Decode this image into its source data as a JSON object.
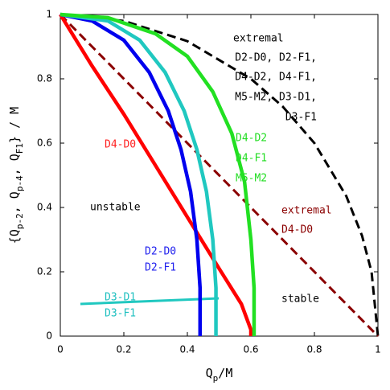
{
  "chart_data": {
    "type": "line",
    "xlabel": [
      "Q",
      "p",
      "/M"
    ],
    "ylabel": [
      "{Q",
      "p-2",
      ", Q",
      "p-4",
      ", Q",
      "F1",
      "} / M"
    ],
    "xlim": [
      0,
      1
    ],
    "ylim": [
      0,
      1
    ],
    "xticks": [
      0,
      0.2,
      0.4,
      0.6,
      0.8,
      1
    ],
    "yticks": [
      0,
      0.2,
      0.4,
      0.6,
      0.8,
      1
    ],
    "series": [
      {
        "color": "#000000",
        "dashed": true,
        "x": [
          0,
          0.2,
          0.4,
          0.6,
          0.7,
          0.8,
          0.9,
          0.95,
          0.98,
          1
        ],
        "values": [
          1,
          0.98,
          0.917,
          0.8,
          0.714,
          0.6,
          0.436,
          0.312,
          0.199,
          0
        ]
      },
      {
        "color": "#8b0000",
        "dashed": true,
        "x": [
          0,
          1
        ],
        "values": [
          1,
          0
        ]
      },
      {
        "color": "#ff0000",
        "dashed": false,
        "x": [
          0,
          0.1,
          0.2,
          0.3,
          0.4,
          0.5,
          0.57,
          0.6,
          0.6
        ],
        "values": [
          1,
          0.84,
          0.69,
          0.53,
          0.37,
          0.21,
          0.1,
          0.02,
          0
        ]
      },
      {
        "color": "#0000ee",
        "dashed": false,
        "x": [
          0,
          0.1,
          0.2,
          0.28,
          0.34,
          0.38,
          0.41,
          0.43,
          0.44,
          0.44
        ],
        "values": [
          1,
          0.98,
          0.92,
          0.82,
          0.7,
          0.58,
          0.45,
          0.3,
          0.15,
          0
        ]
      },
      {
        "color": "#20c8c0",
        "dashed": false,
        "x": [
          0,
          0.15,
          0.25,
          0.33,
          0.39,
          0.43,
          0.46,
          0.48,
          0.49,
          0.49
        ],
        "values": [
          1,
          0.98,
          0.92,
          0.82,
          0.7,
          0.58,
          0.45,
          0.3,
          0.15,
          0
        ]
      },
      {
        "color": "#22e022",
        "dashed": false,
        "x": [
          0,
          0.15,
          0.3,
          0.4,
          0.48,
          0.54,
          0.58,
          0.6,
          0.61,
          0.61
        ],
        "values": [
          1,
          0.99,
          0.94,
          0.87,
          0.76,
          0.63,
          0.48,
          0.3,
          0.15,
          0
        ]
      }
    ],
    "annotations": [
      {
        "color": "#000000",
        "lines": [
          "extremal",
          "D2-D0, D2-F1,",
          "D4-D2, D4-F1,",
          "M5-M2, D3-D1,",
          "D3-F1"
        ]
      },
      {
        "color": "#ff2020",
        "lines": [
          "D4-D0"
        ]
      },
      {
        "color": "#22dd22",
        "lines": [
          "D4-D2",
          "D4-F1",
          "M5-M2"
        ]
      },
      {
        "color": "#8b0000",
        "lines": [
          "extremal",
          "D4-D0"
        ]
      },
      {
        "color": "#000000",
        "lines": [
          "unstable"
        ]
      },
      {
        "color": "#2020ee",
        "lines": [
          "D2-D0",
          "D2-F1"
        ]
      },
      {
        "color": "#20c0c0",
        "lines": [
          "D3-D1",
          "D3-F1"
        ]
      },
      {
        "color": "#000000",
        "lines": [
          "stable"
        ]
      }
    ]
  }
}
